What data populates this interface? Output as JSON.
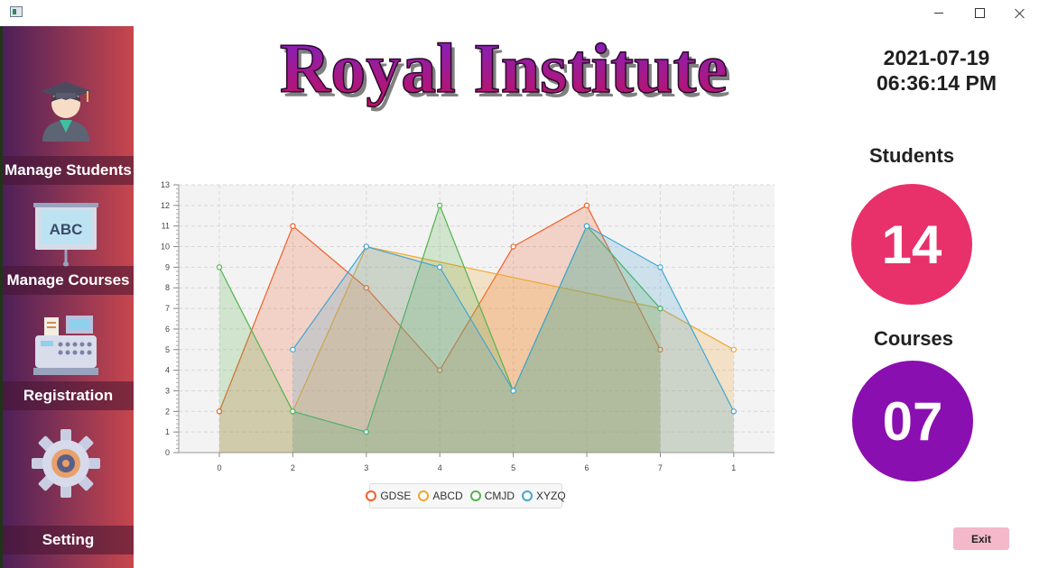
{
  "window": {
    "minimize_glyph": "minimize-icon",
    "maximize_glyph": "maximize-icon",
    "close_glyph": "close-icon"
  },
  "sidebar": {
    "items": [
      {
        "label": "Manage Students",
        "icon": "student-graduate-icon"
      },
      {
        "label": "Manage Courses",
        "icon": "abc-board-icon"
      },
      {
        "label": "Registration",
        "icon": "cash-register-icon"
      },
      {
        "label": "Setting",
        "icon": "gear-icon"
      }
    ]
  },
  "header": {
    "brand_title": "Royal Institute",
    "date": "2021-07-19",
    "time": "06:36:14 PM"
  },
  "stats": {
    "students_label": "Students",
    "students_count": "14",
    "students_color": "#e8306a",
    "courses_label": "Courses",
    "courses_count": "07",
    "courses_color": "#8a0fb0"
  },
  "chart_data": {
    "type": "area",
    "categories": [
      "0",
      "2",
      "3",
      "4",
      "5",
      "6",
      "7",
      "1"
    ],
    "ylim": [
      0,
      13
    ],
    "y_ticks": [
      0,
      1,
      2,
      3,
      4,
      5,
      6,
      7,
      8,
      9,
      10,
      11,
      12,
      13
    ],
    "grid": true,
    "legend_position": "bottom",
    "series": [
      {
        "name": "GDSE",
        "color": "#f0602a",
        "values": [
          2,
          11,
          8,
          4,
          10,
          12,
          5,
          null
        ]
      },
      {
        "name": "ABCD",
        "color": "#f1a629",
        "values": [
          null,
          2,
          10,
          null,
          null,
          null,
          7,
          5
        ]
      },
      {
        "name": "CMJD",
        "color": "#55b34e",
        "values": [
          9,
          2,
          1,
          12,
          3,
          11,
          7,
          null
        ]
      },
      {
        "name": "XYZQ",
        "color": "#43a6d2",
        "values": [
          null,
          5,
          10,
          9,
          3,
          11,
          9,
          2
        ]
      }
    ]
  },
  "footer": {
    "exit_label": "Exit"
  }
}
